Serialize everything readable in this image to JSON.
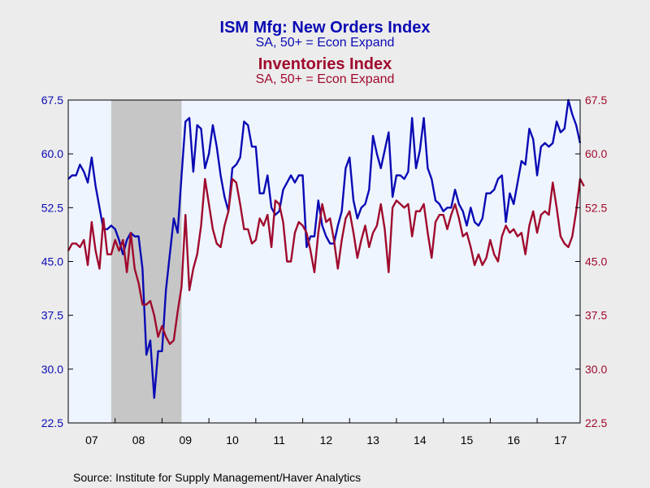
{
  "chart_data": {
    "type": "line",
    "title": "ISM Mfg: New Orders Index",
    "subtitle": "SA, 50+ = Econ Expand",
    "title2": "Inventories Index",
    "subtitle2": "SA, 50+ = Econ Expand",
    "source": "Source:  Institute for Supply Management/Haver Analytics",
    "x_tick_labels": [
      "07",
      "08",
      "09",
      "10",
      "11",
      "12",
      "13",
      "14",
      "15",
      "16",
      "17"
    ],
    "x_range": [
      2007.0,
      2017.9167
    ],
    "y_left": {
      "range": [
        22.5,
        67.5
      ],
      "ticks": [
        "22.5",
        "30.0",
        "37.5",
        "45.0",
        "52.5",
        "60.0",
        "67.5"
      ],
      "color": "#0a0ab4"
    },
    "y_right": {
      "range": [
        22.5,
        67.5
      ],
      "ticks": [
        "22.5",
        "30.0",
        "37.5",
        "45.0",
        "52.5",
        "60.0",
        "67.5"
      ],
      "color": "#a00a2d"
    },
    "grid": false,
    "recession_band": {
      "start": 2007.9167,
      "end": 2009.4167,
      "color": "#c6c6c6"
    },
    "x_start": 2007.0,
    "x_step": 0.08333,
    "series": [
      {
        "name": "New Orders Index",
        "color": "#0a0ab4",
        "axis": "left",
        "values": [
          56.5,
          57,
          57,
          58.5,
          57.5,
          56,
          59.5,
          55.5,
          52.5,
          49.5,
          49.5,
          50,
          49.5,
          48,
          46,
          48,
          49,
          48.5,
          48.5,
          44,
          32,
          34,
          26,
          32.5,
          32.5,
          41,
          46,
          51,
          49,
          57,
          64.5,
          65,
          57.5,
          64,
          63.5,
          58,
          60,
          64,
          61,
          57,
          54,
          52,
          58,
          58.5,
          59.5,
          64.5,
          64,
          61,
          61,
          54.5,
          54.5,
          57,
          52.5,
          51.5,
          52,
          55,
          56,
          57,
          56,
          57,
          57,
          47,
          48.5,
          48.5,
          53.5,
          50,
          48.5,
          47.5,
          47.5,
          50,
          52,
          58,
          59.5,
          53.5,
          51,
          52.5,
          53,
          55,
          62.5,
          60,
          58,
          60.5,
          63,
          54,
          57,
          57,
          56.5,
          57.5,
          65,
          58,
          60.5,
          65,
          58,
          56.5,
          53.5,
          53,
          52,
          52.5,
          52.5,
          55,
          53,
          52,
          50,
          52.5,
          50.5,
          50,
          51,
          54.5,
          54.5,
          55,
          56.5,
          57,
          50.5,
          54.5,
          53,
          56,
          59,
          58.5,
          63.5,
          62,
          57,
          61,
          61.5,
          61,
          61.5,
          64.5,
          63,
          63.5,
          67.5,
          65.5,
          64,
          61.5
        ]
      },
      {
        "name": "Inventories Index",
        "color": "#a00a2d",
        "axis": "right",
        "values": [
          46.5,
          47.5,
          47.5,
          47,
          48,
          44.5,
          50.5,
          46.5,
          44,
          51,
          46,
          46,
          48,
          46.5,
          48,
          43.5,
          49,
          44,
          42,
          39,
          39,
          39.5,
          37.5,
          34.5,
          36,
          34.5,
          33.5,
          34,
          38,
          41.5,
          51.5,
          41,
          44,
          46,
          50,
          56.5,
          53,
          49.5,
          47.5,
          47,
          50,
          52,
          56.5,
          56,
          53,
          49.5,
          49.5,
          47.5,
          48,
          51,
          50,
          51.5,
          47,
          53.5,
          53,
          50.5,
          45,
          45,
          49,
          50.5,
          50,
          49,
          46.5,
          43.5,
          49,
          53,
          50.5,
          51,
          48,
          44,
          48,
          51,
          52,
          49,
          45.5,
          48,
          50,
          47,
          49,
          50,
          53,
          49.5,
          43.5,
          52.5,
          53.5,
          53,
          52.5,
          53,
          48.5,
          52,
          52,
          53,
          49,
          45.5,
          50.5,
          51.5,
          51.5,
          49.5,
          51.5,
          53,
          51,
          48.5,
          49,
          47,
          44.5,
          46,
          44.5,
          45.5,
          48,
          46,
          45,
          48.5,
          50,
          49,
          49.5,
          48.5,
          49,
          46,
          50,
          52,
          49,
          51.5,
          52,
          51.5,
          56,
          52.5,
          48.5,
          47.5,
          47,
          48.5,
          52,
          56.5,
          55.5
        ]
      }
    ]
  }
}
